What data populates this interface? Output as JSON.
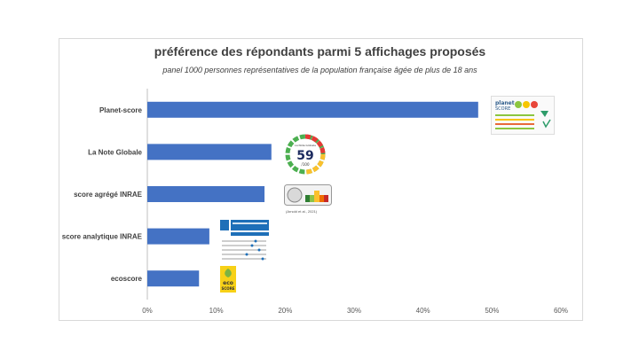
{
  "chart_data": {
    "type": "bar",
    "orientation": "horizontal",
    "title": "préférence des répondants parmi 5 affichages proposés",
    "subtitle": "panel 1000 personnes représentatives de la population française âgée de plus de 18 ans",
    "categories": [
      "Planet-score",
      "La Note Globale",
      "score agrégé INRAE",
      "score analytique INRAE",
      "ecoscore"
    ],
    "values": [
      48,
      18,
      17,
      9,
      7.5
    ],
    "x_ticks": [
      "0%",
      "10%",
      "20%",
      "30%",
      "40%",
      "50%",
      "60%"
    ],
    "xlim": [
      0,
      60
    ],
    "bar_color": "#4472C4",
    "grid": false,
    "legend": "none"
  },
  "logos": {
    "planet": {
      "brand": "planet",
      "brand2": "SCORE"
    },
    "note": {
      "top": "La Note Globale",
      "value": "59",
      "bottom": "/100"
    },
    "inrae_citation": "(Arnold et al., 2021)",
    "eco": {
      "line1": "eco",
      "line2": "SCORE"
    }
  }
}
